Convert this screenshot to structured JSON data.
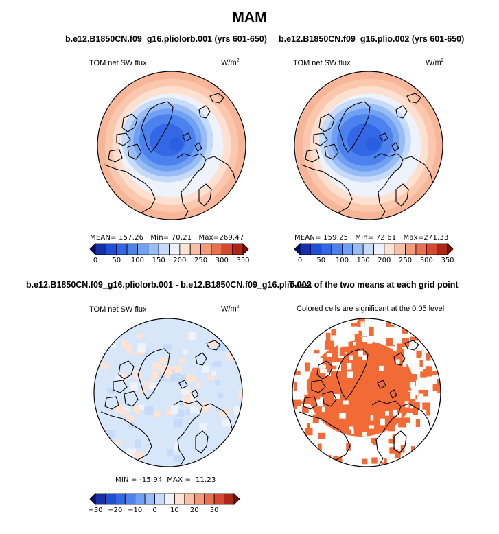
{
  "figure": {
    "season_title": "MAM"
  },
  "chart_data": [
    {
      "type": "heatmap",
      "title": "b.e12.B1850CN.f09_g16.pliolorb.001 (yrs 601-650)",
      "variable_label": "TOM net SW flux",
      "units_base": "W/m",
      "units_exp": "2",
      "projection": "north-polar-stereographic",
      "stats": {
        "mean_label": "MEAN=",
        "mean": "157.26",
        "min_label": "Min=",
        "min": "70.21",
        "max_label": "Max=",
        "max": "269.47"
      },
      "colorbar": {
        "levels": [
          0,
          25,
          50,
          75,
          100,
          125,
          150,
          175,
          200,
          225,
          250,
          275,
          300,
          325,
          350
        ],
        "tick_labels": [
          "0",
          "50",
          "100",
          "150",
          "200",
          "250",
          "300",
          "350"
        ],
        "colors": [
          "#0a0a6e",
          "#1530a8",
          "#1f4fd2",
          "#3367e6",
          "#4b82ee",
          "#6fa0f3",
          "#98bdf6",
          "#c6dbf9",
          "#eef3fb",
          "#fde3d4",
          "#f9c1a3",
          "#f39a78",
          "#ea7150",
          "#d4492f",
          "#b02614",
          "#7d0c04"
        ]
      },
      "fill_description": "blue centered over Arctic Ocean (low values), transitioning to peach/salmon toward the rim"
    },
    {
      "type": "heatmap",
      "title": "b.e12.B1850CN.f09_g16.plio.002 (yrs 601-650)",
      "variable_label": "TOM net SW flux",
      "units_base": "W/m",
      "units_exp": "2",
      "projection": "north-polar-stereographic",
      "stats": {
        "mean_label": "MEAN=",
        "mean": "159.25",
        "min_label": "Min=",
        "min": "72.61",
        "max_label": "Max=",
        "max": "271.33"
      },
      "colorbar": {
        "levels": [
          0,
          25,
          50,
          75,
          100,
          125,
          150,
          175,
          200,
          225,
          250,
          275,
          300,
          325,
          350
        ],
        "tick_labels": [
          "0",
          "50",
          "100",
          "150",
          "200",
          "250",
          "300",
          "350"
        ],
        "colors": [
          "#0a0a6e",
          "#1530a8",
          "#1f4fd2",
          "#3367e6",
          "#4b82ee",
          "#6fa0f3",
          "#98bdf6",
          "#c6dbf9",
          "#eef3fb",
          "#fde3d4",
          "#f9c1a3",
          "#f39a78",
          "#ea7150",
          "#d4492f",
          "#b02614",
          "#7d0c04"
        ]
      }
    },
    {
      "type": "heatmap",
      "title": "b.e12.B1850CN.f09_g16.pliolorb.001 - b.e12.B1850CN.f09_g16.plio.002",
      "variable_label": "TOM net SW flux",
      "units_base": "W/m",
      "units_exp": "2",
      "projection": "north-polar-stereographic",
      "stats": {
        "min_label": "MIN =",
        "min": "-15.94",
        "max_label": "MAX =",
        "max": "11.23"
      },
      "colorbar": {
        "levels": [
          -35,
          -30,
          -25,
          -20,
          -15,
          -10,
          -5,
          0,
          5,
          10,
          15,
          20,
          25,
          30,
          35
        ],
        "tick_labels": [
          "-30",
          "-20",
          "-10",
          "0",
          "10",
          "20",
          "30"
        ],
        "colors": [
          "#0a0a6e",
          "#1530a8",
          "#1f4fd2",
          "#3367e6",
          "#4b82ee",
          "#6fa0f3",
          "#98bdf6",
          "#c6dbf9",
          "#eef3fb",
          "#fde3d4",
          "#f9c1a3",
          "#f39a78",
          "#ea7150",
          "#d4492f",
          "#b02614",
          "#7d0c04"
        ]
      }
    },
    {
      "type": "heatmap",
      "title": "T-test of the two means at each grid point",
      "variable_label": "Colored cells are significant at the 0.05 level",
      "projection": "north-polar-stereographic",
      "significance_color": "#f26a35"
    }
  ]
}
